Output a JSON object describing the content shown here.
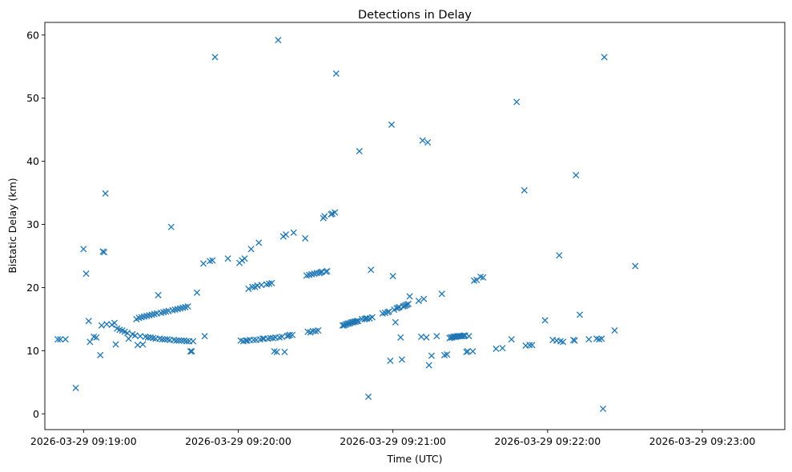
{
  "chart_data": {
    "type": "scatter",
    "title": "Detections in Delay",
    "xlabel": "Time (UTC)",
    "ylabel": "Bistatic Delay (km)",
    "x_unit": "seconds after 2026-03-29 09:18:00 UTC",
    "xlim": [
      45,
      332
    ],
    "ylim": [
      -2.5,
      62
    ],
    "x_ticks": [
      {
        "value": 60,
        "label": "2026-03-29 09:19:00"
      },
      {
        "value": 120,
        "label": "2026-03-29 09:20:00"
      },
      {
        "value": 180,
        "label": "2026-03-29 09:21:00"
      },
      {
        "value": 240,
        "label": "2026-03-29 09:22:00"
      },
      {
        "value": 300,
        "label": "2026-03-29 09:23:00"
      }
    ],
    "y_ticks": [
      0,
      10,
      20,
      30,
      40,
      50,
      60
    ],
    "marker": "x",
    "color": "#1f77b4",
    "grid": false,
    "points": [
      [
        50,
        11.8
      ],
      [
        51,
        11.8
      ],
      [
        53,
        11.8
      ],
      [
        57,
        4.1
      ],
      [
        60,
        26.1
      ],
      [
        61,
        22.2
      ],
      [
        62,
        14.7
      ],
      [
        62.5,
        11.4
      ],
      [
        64,
        12.2
      ],
      [
        65,
        12.1
      ],
      [
        66.5,
        9.3
      ],
      [
        67,
        14.0
      ],
      [
        67.5,
        25.7
      ],
      [
        68,
        25.6
      ],
      [
        68.5,
        34.9
      ],
      [
        69,
        14.2
      ],
      [
        71,
        14.1
      ],
      [
        72,
        14.4
      ],
      [
        72.5,
        11.0
      ],
      [
        73,
        13.5
      ],
      [
        74,
        13.3
      ],
      [
        75,
        13.2
      ],
      [
        76,
        13.0
      ],
      [
        77,
        12.8
      ],
      [
        77.5,
        11.9
      ],
      [
        79,
        12.6
      ],
      [
        80,
        12.4
      ],
      [
        80.5,
        15.0
      ],
      [
        81,
        10.9
      ],
      [
        81.5,
        15.2
      ],
      [
        82,
        12.3
      ],
      [
        82.5,
        15.3
      ],
      [
        83,
        11.0
      ],
      [
        83.5,
        15.4
      ],
      [
        84,
        12.2
      ],
      [
        84.5,
        15.5
      ],
      [
        85,
        12.1
      ],
      [
        85.5,
        15.6
      ],
      [
        86,
        12.1
      ],
      [
        86.5,
        15.7
      ],
      [
        87,
        12.0
      ],
      [
        87.5,
        15.8
      ],
      [
        88,
        11.9
      ],
      [
        88.5,
        15.9
      ],
      [
        89,
        18.8
      ],
      [
        89.5,
        11.9
      ],
      [
        90,
        16.0
      ],
      [
        90.5,
        11.8
      ],
      [
        91,
        16.1
      ],
      [
        91.5,
        11.8
      ],
      [
        92,
        16.2
      ],
      [
        92.5,
        11.8
      ],
      [
        93,
        16.3
      ],
      [
        93.5,
        11.7
      ],
      [
        94,
        29.6
      ],
      [
        94.5,
        16.4
      ],
      [
        95,
        11.7
      ],
      [
        95.5,
        16.5
      ],
      [
        96,
        11.6
      ],
      [
        96.5,
        16.6
      ],
      [
        97,
        11.6
      ],
      [
        97.5,
        16.7
      ],
      [
        98,
        11.6
      ],
      [
        98.5,
        16.8
      ],
      [
        99,
        11.6
      ],
      [
        99.5,
        16.9
      ],
      [
        100,
        11.5
      ],
      [
        100.5,
        17.0
      ],
      [
        101,
        11.5
      ],
      [
        101.5,
        9.9
      ],
      [
        102,
        9.9
      ],
      [
        102.5,
        11.5
      ],
      [
        104,
        19.2
      ],
      [
        106.5,
        23.8
      ],
      [
        107,
        12.3
      ],
      [
        109,
        24.2
      ],
      [
        110,
        24.3
      ],
      [
        111,
        56.5
      ],
      [
        116,
        24.6
      ],
      [
        120.5,
        23.9
      ],
      [
        121,
        11.6
      ],
      [
        121.5,
        24.3
      ],
      [
        122,
        11.5
      ],
      [
        122.5,
        24.6
      ],
      [
        123,
        11.6
      ],
      [
        123.5,
        11.6
      ],
      [
        124,
        19.8
      ],
      [
        124.5,
        11.7
      ],
      [
        125,
        26.1
      ],
      [
        125.5,
        20.1
      ],
      [
        126,
        11.7
      ],
      [
        126.5,
        20.1
      ],
      [
        127,
        11.7
      ],
      [
        127.5,
        20.3
      ],
      [
        128,
        27.1
      ],
      [
        128.5,
        11.8
      ],
      [
        129,
        20.4
      ],
      [
        129.5,
        11.9
      ],
      [
        130,
        11.9
      ],
      [
        131,
        20.5
      ],
      [
        131.5,
        11.9
      ],
      [
        132,
        20.6
      ],
      [
        132.5,
        12.0
      ],
      [
        133,
        20.7
      ],
      [
        133.5,
        12.0
      ],
      [
        134,
        9.9
      ],
      [
        134.5,
        12.1
      ],
      [
        135,
        9.8
      ],
      [
        135.5,
        59.2
      ],
      [
        136,
        12.1
      ],
      [
        137,
        12.2
      ],
      [
        137.5,
        28.1
      ],
      [
        138,
        9.8
      ],
      [
        138.5,
        28.4
      ],
      [
        139,
        12.3
      ],
      [
        139.5,
        12.4
      ],
      [
        140,
        12.5
      ],
      [
        141,
        12.5
      ],
      [
        141.5,
        28.7
      ],
      [
        146,
        27.8
      ],
      [
        146.5,
        21.9
      ],
      [
        147,
        13.0
      ],
      [
        147.5,
        22.0
      ],
      [
        148,
        12.9
      ],
      [
        148.5,
        22.1
      ],
      [
        149,
        13.1
      ],
      [
        149.5,
        22.2
      ],
      [
        150,
        13.1
      ],
      [
        150.5,
        22.3
      ],
      [
        151,
        13.2
      ],
      [
        151.5,
        22.3
      ],
      [
        152,
        22.4
      ],
      [
        152.5,
        22.5
      ],
      [
        153,
        31.0
      ],
      [
        153.5,
        31.3
      ],
      [
        154,
        22.5
      ],
      [
        154.5,
        22.6
      ],
      [
        156,
        31.6
      ],
      [
        156.5,
        31.7
      ],
      [
        157.5,
        31.9
      ],
      [
        158,
        53.9
      ],
      [
        160.5,
        14.0
      ],
      [
        161,
        14.0
      ],
      [
        161.5,
        14.1
      ],
      [
        162,
        14.2
      ],
      [
        162.5,
        14.3
      ],
      [
        163,
        14.3
      ],
      [
        163.5,
        14.4
      ],
      [
        164,
        14.5
      ],
      [
        164.5,
        14.5
      ],
      [
        165,
        14.6
      ],
      [
        165.5,
        14.6
      ],
      [
        166,
        14.7
      ],
      [
        166.5,
        14.7
      ],
      [
        167,
        41.6
      ],
      [
        168,
        15.0
      ],
      [
        169,
        15.0
      ],
      [
        169.5,
        15.1
      ],
      [
        170,
        15.1
      ],
      [
        170.5,
        2.7
      ],
      [
        171,
        15.1
      ],
      [
        171.5,
        22.8
      ],
      [
        172,
        15.3
      ],
      [
        176,
        15.9
      ],
      [
        177,
        16.0
      ],
      [
        178,
        16.1
      ],
      [
        178.5,
        16.2
      ],
      [
        179,
        8.4
      ],
      [
        179.5,
        45.8
      ],
      [
        180,
        21.8
      ],
      [
        180.5,
        16.5
      ],
      [
        181,
        14.5
      ],
      [
        181.5,
        16.7
      ],
      [
        182,
        16.8
      ],
      [
        182.5,
        16.9
      ],
      [
        183,
        12.1
      ],
      [
        183.5,
        8.6
      ],
      [
        184,
        17.0
      ],
      [
        184.5,
        17.1
      ],
      [
        185,
        17.2
      ],
      [
        185.5,
        17.3
      ],
      [
        186,
        17.4
      ],
      [
        186.5,
        18.6
      ],
      [
        190,
        17.9
      ],
      [
        191,
        12.2
      ],
      [
        191.5,
        43.3
      ],
      [
        192,
        18.2
      ],
      [
        193,
        12.1
      ],
      [
        193.5,
        43.0
      ],
      [
        194,
        7.7
      ],
      [
        195,
        9.2
      ],
      [
        197,
        12.3
      ],
      [
        199,
        19.0
      ],
      [
        200,
        9.3
      ],
      [
        201,
        9.4
      ],
      [
        202,
        12.0
      ],
      [
        202.5,
        12.1
      ],
      [
        203,
        12.1
      ],
      [
        203.5,
        12.2
      ],
      [
        204,
        12.2
      ],
      [
        204.5,
        12.2
      ],
      [
        205,
        12.3
      ],
      [
        205.5,
        12.3
      ],
      [
        206,
        12.3
      ],
      [
        206.5,
        12.3
      ],
      [
        207,
        12.3
      ],
      [
        207.5,
        12.4
      ],
      [
        208,
        12.4
      ],
      [
        208.5,
        9.8
      ],
      [
        209,
        9.9
      ],
      [
        209.5,
        12.3
      ],
      [
        211,
        9.9
      ],
      [
        211.5,
        21.1
      ],
      [
        212.5,
        21.2
      ],
      [
        214,
        21.7
      ],
      [
        215,
        21.6
      ],
      [
        220,
        10.3
      ],
      [
        222.5,
        10.4
      ],
      [
        226,
        11.8
      ],
      [
        228,
        49.4
      ],
      [
        231,
        35.4
      ],
      [
        231.5,
        10.8
      ],
      [
        233,
        10.9
      ],
      [
        234,
        10.9
      ],
      [
        239,
        14.8
      ],
      [
        242,
        11.7
      ],
      [
        243.5,
        11.6
      ],
      [
        244.5,
        25.1
      ],
      [
        245,
        11.5
      ],
      [
        246,
        11.4
      ],
      [
        250,
        11.7
      ],
      [
        250.5,
        11.6
      ],
      [
        251,
        37.8
      ],
      [
        252.5,
        15.7
      ],
      [
        256,
        11.8
      ],
      [
        259,
        11.9
      ],
      [
        260,
        11.8
      ],
      [
        261,
        11.9
      ],
      [
        261.5,
        0.8
      ],
      [
        262,
        56.5
      ],
      [
        266,
        13.2
      ],
      [
        274,
        23.4
      ]
    ]
  }
}
